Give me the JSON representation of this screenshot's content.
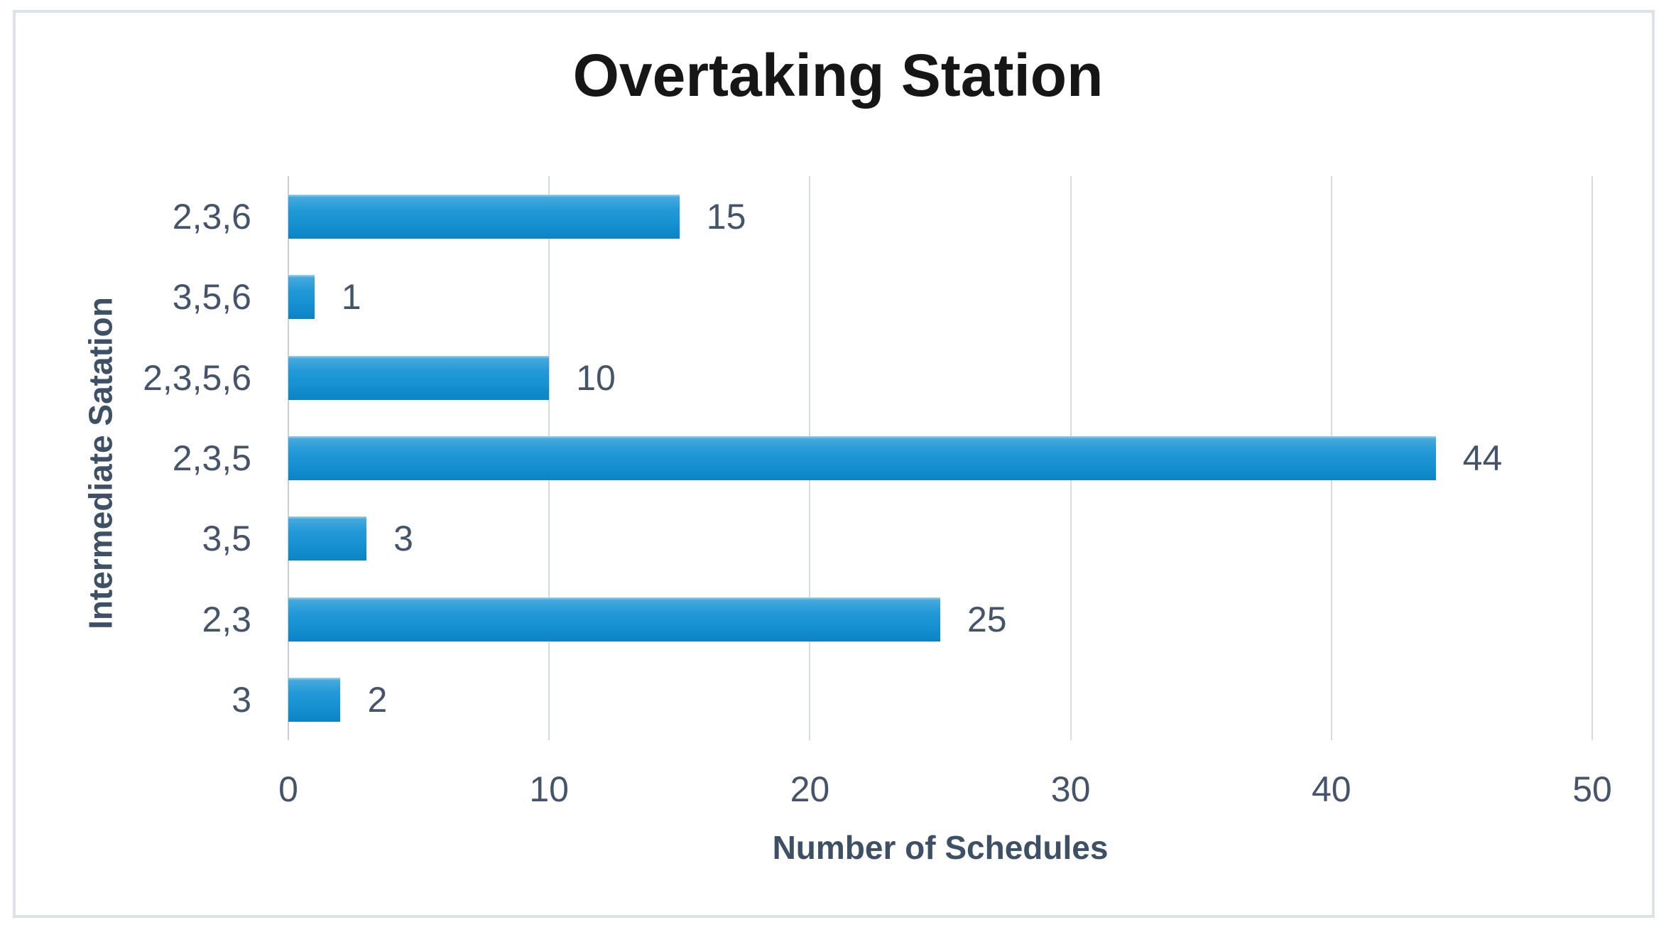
{
  "chart_data": {
    "type": "bar",
    "orientation": "horizontal",
    "title": "Overtaking Station",
    "xlabel": "Number of Schedules",
    "ylabel": "Intermediate Satation",
    "categories": [
      "2,3,6",
      "3,5,6",
      "2,3,5,6",
      "2,3,5",
      "3,5",
      "2,3",
      "3"
    ],
    "values": [
      15,
      1,
      10,
      44,
      3,
      25,
      2
    ],
    "data_labels": [
      "15",
      "1",
      "10",
      "44",
      "3",
      "25",
      "2"
    ],
    "xlim": [
      0,
      50
    ],
    "xticks": [
      0,
      10,
      20,
      30,
      40,
      50
    ],
    "grid": true,
    "legend": false,
    "colors": {
      "bar": "#1791d1",
      "text": "#44546a",
      "title": "#161616",
      "gridline": "#d5dbe2",
      "frame_border": "#dbe2ea",
      "background": "#ffffff"
    }
  }
}
